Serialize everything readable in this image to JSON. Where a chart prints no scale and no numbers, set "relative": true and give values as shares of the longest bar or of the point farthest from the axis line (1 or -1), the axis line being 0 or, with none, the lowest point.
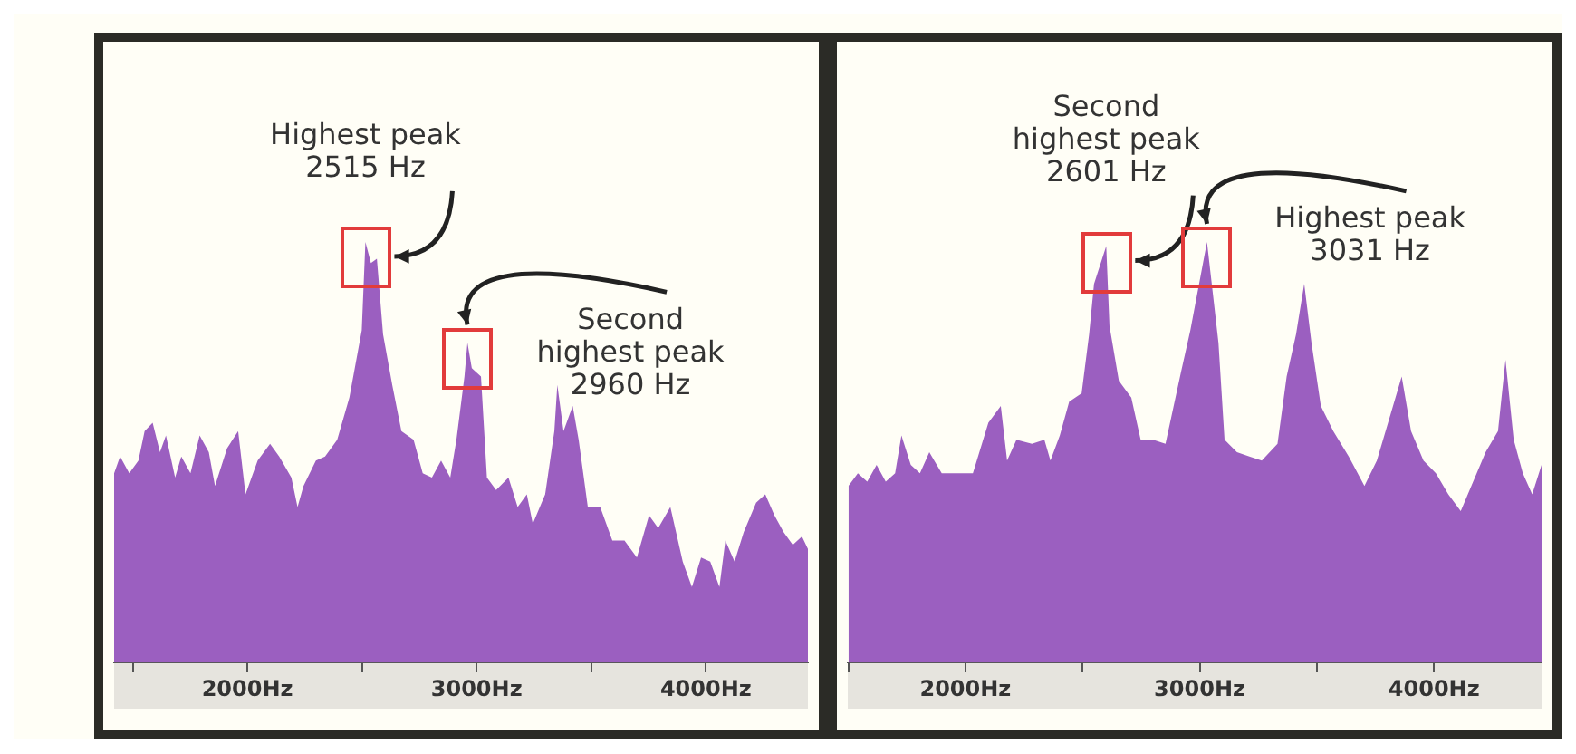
{
  "chart_data": [
    {
      "type": "area",
      "relative": true,
      "xlim": [
        1419,
        4445
      ],
      "xticks": [
        {
          "value": 1500,
          "label": null
        },
        {
          "value": 2000,
          "label": "2000Hz"
        },
        {
          "value": 2500,
          "label": null
        },
        {
          "value": 3000,
          "label": "3000Hz"
        },
        {
          "value": 3500,
          "label": null
        },
        {
          "value": 4000,
          "label": "4000Hz"
        }
      ],
      "annotations": [
        {
          "text": "Highest peak\n2515 Hz",
          "x": 2515,
          "y": 1
        },
        {
          "text": "Second\nhighest peak\n2960 Hz",
          "x": 2960,
          "y": 0.76
        }
      ],
      "series": [
        {
          "color": "#9b5fc0",
          "x": [
            1419,
            1445,
            1485,
            1525,
            1552,
            1587,
            1619,
            1645,
            1685,
            1712,
            1752,
            1792,
            1832,
            1859,
            1912,
            1960,
            1992,
            2045,
            2099,
            2139,
            2192,
            2219,
            2245,
            2299,
            2339,
            2392,
            2445,
            2499,
            2515,
            2539,
            2565,
            2592,
            2632,
            2672,
            2725,
            2765,
            2805,
            2845,
            2885,
            2912,
            2947,
            2960,
            2979,
            3019,
            3045,
            3085,
            3139,
            3179,
            3219,
            3245,
            3299,
            3339,
            3352,
            3379,
            3419,
            3445,
            3485,
            3539,
            3592,
            3645,
            3699,
            3752,
            3792,
            3845,
            3899,
            3939,
            3979,
            4019,
            4059,
            4085,
            4125,
            4165,
            4219,
            4259,
            4299,
            4339,
            4379,
            4419,
            4445
          ],
          "values": [
            0.45,
            0.49,
            0.45,
            0.48,
            0.55,
            0.57,
            0.5,
            0.54,
            0.44,
            0.49,
            0.45,
            0.54,
            0.5,
            0.42,
            0.51,
            0.55,
            0.4,
            0.48,
            0.52,
            0.49,
            0.44,
            0.37,
            0.42,
            0.48,
            0.49,
            0.53,
            0.63,
            0.79,
            1.0,
            0.95,
            0.96,
            0.78,
            0.66,
            0.55,
            0.53,
            0.45,
            0.44,
            0.48,
            0.44,
            0.53,
            0.68,
            0.76,
            0.7,
            0.68,
            0.44,
            0.41,
            0.44,
            0.37,
            0.4,
            0.33,
            0.4,
            0.55,
            0.66,
            0.55,
            0.61,
            0.53,
            0.37,
            0.37,
            0.29,
            0.29,
            0.25,
            0.35,
            0.32,
            0.37,
            0.24,
            0.18,
            0.25,
            0.24,
            0.18,
            0.29,
            0.24,
            0.31,
            0.38,
            0.4,
            0.35,
            0.31,
            0.28,
            0.3,
            0.27
          ]
        }
      ]
    },
    {
      "type": "area",
      "relative": true,
      "xlim": [
        1498,
        4459
      ],
      "xticks": [
        {
          "value": 1500,
          "label": null
        },
        {
          "value": 2000,
          "label": "2000Hz"
        },
        {
          "value": 2500,
          "label": null
        },
        {
          "value": 3000,
          "label": "3000Hz"
        },
        {
          "value": 3500,
          "label": null
        },
        {
          "value": 4000,
          "label": "4000Hz"
        }
      ],
      "annotations": [
        {
          "text": "Second\nhighest peak\n2601 Hz",
          "x": 2601,
          "y": 0.99
        },
        {
          "text": "Highest peak\n3031 Hz",
          "x": 3031,
          "y": 1
        }
      ],
      "series": [
        {
          "color": "#9b5fc0",
          "x": [
            1501,
            1541,
            1581,
            1621,
            1660,
            1700,
            1727,
            1767,
            1806,
            1846,
            1899,
            1966,
            2032,
            2098,
            2151,
            2178,
            2218,
            2284,
            2337,
            2363,
            2403,
            2443,
            2496,
            2528,
            2549,
            2601,
            2615,
            2655,
            2708,
            2748,
            2801,
            2854,
            2920,
            2960,
            3031,
            3080,
            3106,
            3159,
            3212,
            3265,
            3332,
            3371,
            3411,
            3446,
            3477,
            3517,
            3570,
            3636,
            3703,
            3756,
            3809,
            3862,
            3902,
            3955,
            4008,
            4061,
            4114,
            4167,
            4220,
            4273,
            4305,
            4340,
            4379,
            4419,
            4459
          ],
          "values": [
            0.42,
            0.45,
            0.43,
            0.47,
            0.43,
            0.45,
            0.54,
            0.47,
            0.45,
            0.5,
            0.45,
            0.45,
            0.45,
            0.57,
            0.61,
            0.48,
            0.53,
            0.52,
            0.53,
            0.48,
            0.54,
            0.62,
            0.64,
            0.78,
            0.9,
            0.99,
            0.8,
            0.67,
            0.63,
            0.53,
            0.53,
            0.52,
            0.69,
            0.79,
            1.0,
            0.76,
            0.53,
            0.5,
            0.49,
            0.48,
            0.52,
            0.68,
            0.78,
            0.9,
            0.76,
            0.61,
            0.55,
            0.49,
            0.42,
            0.48,
            0.58,
            0.68,
            0.55,
            0.48,
            0.45,
            0.4,
            0.36,
            0.43,
            0.5,
            0.55,
            0.72,
            0.53,
            0.45,
            0.4,
            0.47
          ]
        }
      ]
    }
  ]
}
